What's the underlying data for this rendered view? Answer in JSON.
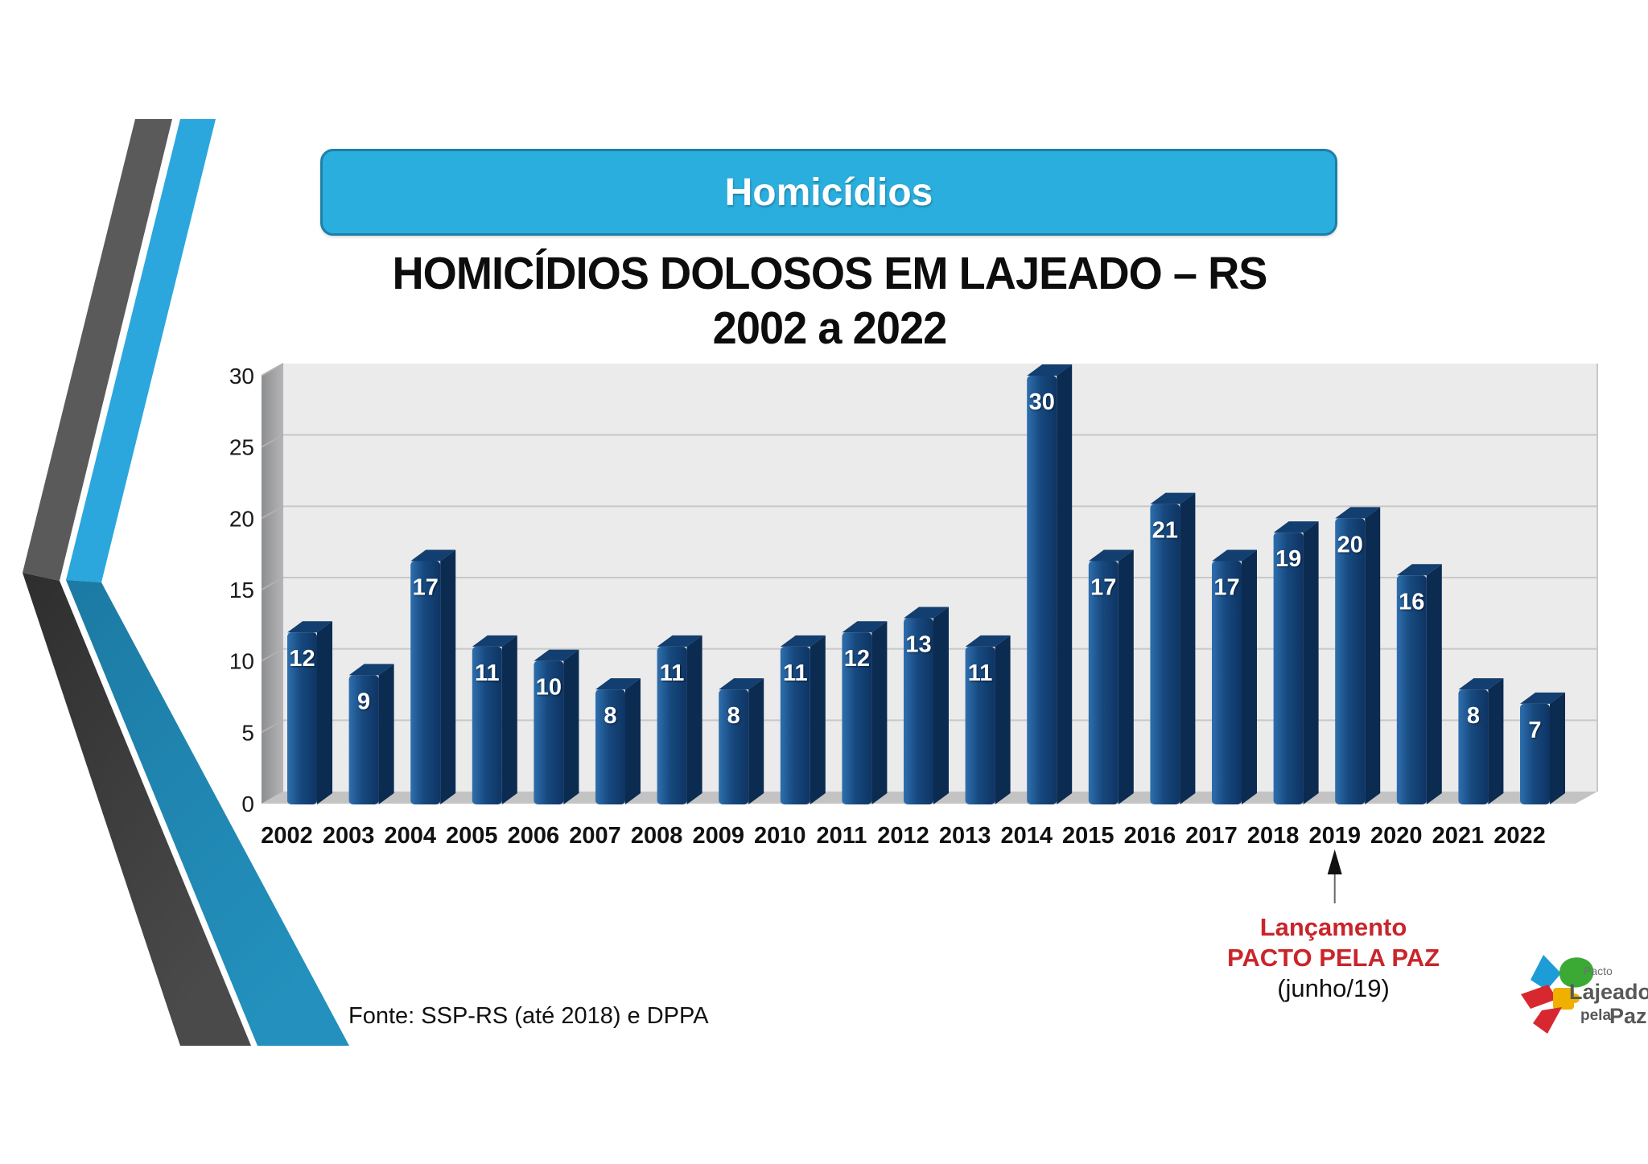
{
  "header": {
    "label": "Homicídios"
  },
  "title": {
    "line1": "HOMICÍDIOS DOLOSOS EM LAJEADO – RS",
    "line2": "2002 a 2022"
  },
  "annotation": {
    "line1": "Lançamento",
    "line2": "PACTO PELA PAZ",
    "line3": "(junho/19)"
  },
  "source": "Fonte: SSP-RS (até 2018) e DPPA",
  "logo": {
    "top": "Pacto",
    "name": "Lajeado",
    "sub1": "pela",
    "sub2": "Paz"
  },
  "colors": {
    "header_fill": "#2aaede",
    "header_border": "#1f7fa8",
    "bar_face": "#17497f",
    "bar_side": "#0b2b51",
    "bar_top": "#133e70",
    "panel": "#ebebeb",
    "gridline": "#c8c8c8",
    "wall": "#9a9a9c",
    "floor": "#c3c3c3",
    "annotation_red": "#c9252b",
    "ribbon_blue": "#2ba7de",
    "ribbon_gray": "#5a5a5a"
  },
  "chart_data": {
    "type": "bar",
    "style": "3d-column",
    "title": "HOMICÍDIOS DOLOSOS EM LAJEADO – RS 2002 a 2022",
    "categories": [
      "2002",
      "2003",
      "2004",
      "2005",
      "2006",
      "2007",
      "2008",
      "2009",
      "2010",
      "2011",
      "2012",
      "2013",
      "2014",
      "2015",
      "2016",
      "2017",
      "2018",
      "2019",
      "2020",
      "2021",
      "2022"
    ],
    "values": [
      12,
      9,
      17,
      11,
      10,
      8,
      11,
      8,
      11,
      12,
      13,
      11,
      30,
      17,
      21,
      17,
      19,
      20,
      16,
      8,
      7
    ],
    "xlabel": "",
    "ylabel": "",
    "ylim": [
      0,
      30
    ],
    "y_ticks": [
      0,
      5,
      10,
      15,
      20,
      25,
      30
    ],
    "grid": true,
    "legend": false,
    "data_labels": true,
    "annotation_target_category": "2019"
  }
}
